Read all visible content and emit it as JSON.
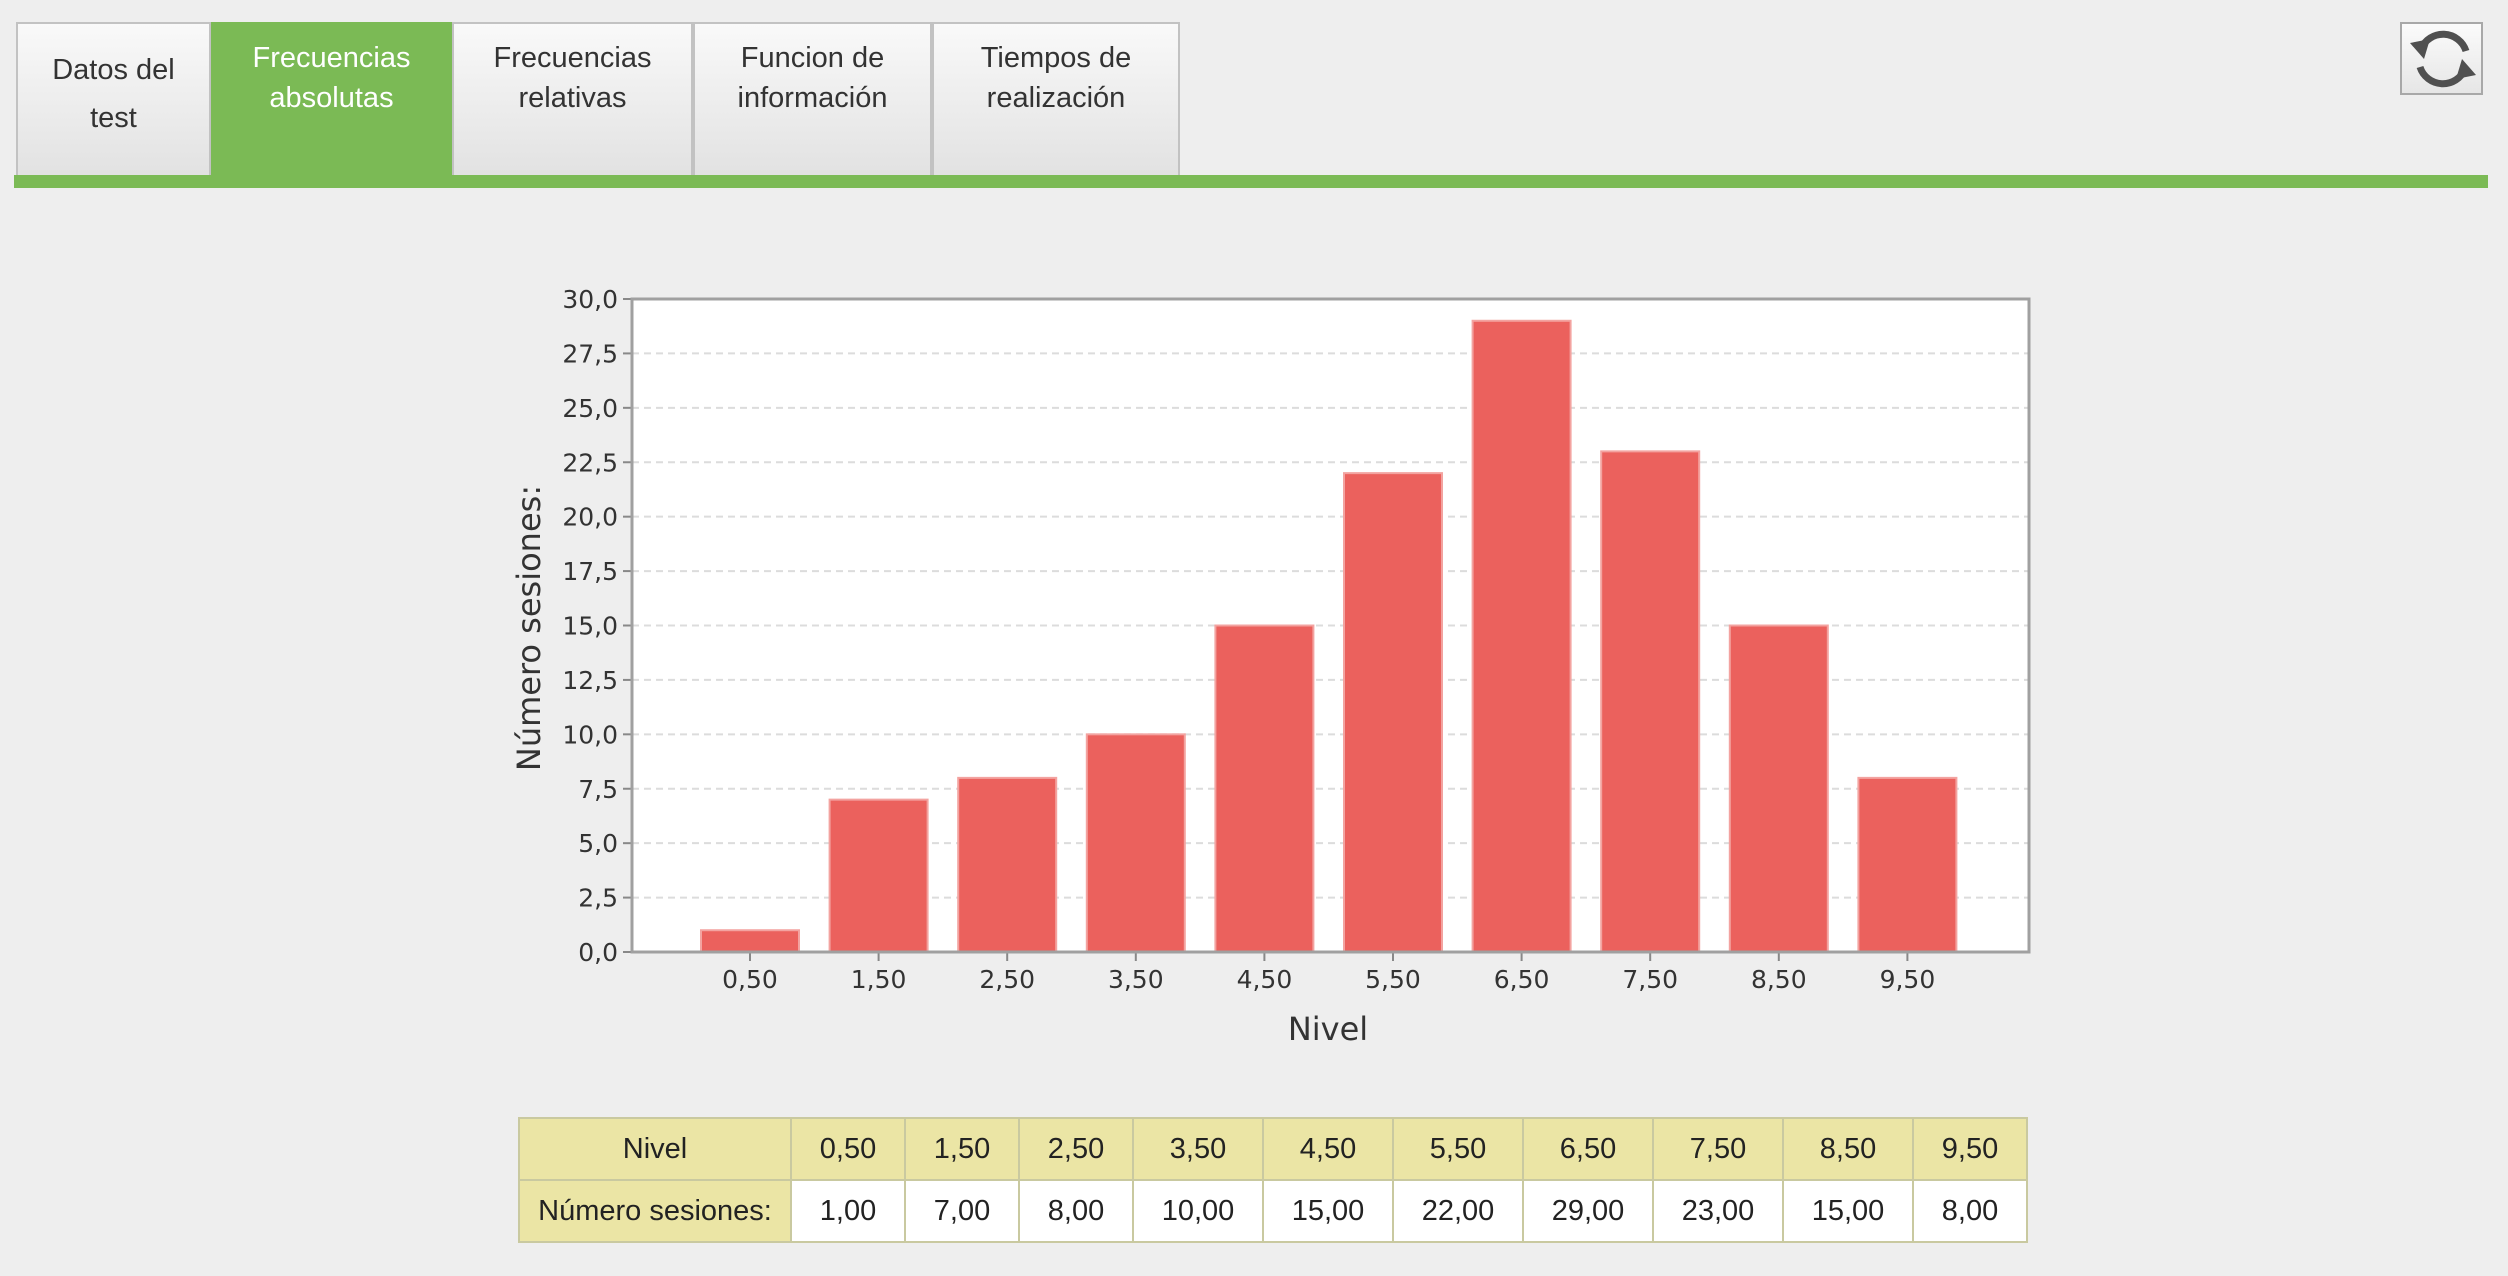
{
  "tabs": [
    {
      "label": "Datos del\ntest",
      "active": false
    },
    {
      "label": "Frecuencias\nabsolutas",
      "active": true
    },
    {
      "label": "Frecuencias\nrelativas",
      "active": false
    },
    {
      "label": "Funcion de\ninformación",
      "active": false
    },
    {
      "label": "Tiempos de\nrealización",
      "active": false
    }
  ],
  "refresh_icon": "refresh-icon",
  "colors": {
    "accent": "#7bba55",
    "bar": "#eb615d",
    "table_header": "#ebe5a5"
  },
  "chart_data": {
    "type": "bar",
    "categories": [
      "0,50",
      "1,50",
      "2,50",
      "3,50",
      "4,50",
      "5,50",
      "6,50",
      "7,50",
      "8,50",
      "9,50"
    ],
    "values": [
      1,
      7,
      8,
      10,
      15,
      22,
      29,
      23,
      15,
      8
    ],
    "xlabel": "Nivel",
    "ylabel": "Número sesiones:",
    "ylim": [
      0,
      30
    ],
    "yticks": [
      "0,0",
      "2,5",
      "5,0",
      "7,5",
      "10,0",
      "12,5",
      "15,0",
      "17,5",
      "20,0",
      "22,5",
      "25,0",
      "27,5",
      "30,0"
    ],
    "grid": true,
    "legend": "none"
  },
  "table": {
    "header_label": "Nivel",
    "row_label": "Número sesiones:",
    "levels": [
      "0,50",
      "1,50",
      "2,50",
      "3,50",
      "4,50",
      "5,50",
      "6,50",
      "7,50",
      "8,50",
      "9,50"
    ],
    "values": [
      "1,00",
      "7,00",
      "8,00",
      "10,00",
      "15,00",
      "22,00",
      "29,00",
      "23,00",
      "15,00",
      "8,00"
    ]
  }
}
